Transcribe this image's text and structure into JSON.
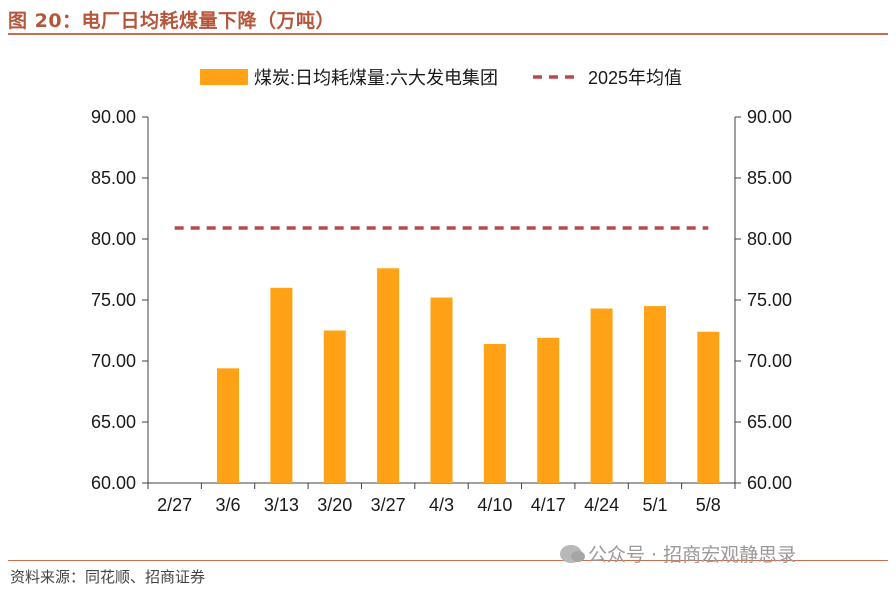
{
  "header": {
    "title": "图 20：电厂日均耗煤量下降（万吨）"
  },
  "footer": {
    "source": "资料来源：同花顺、招商证券",
    "watermark": "公众号 · 招商宏观静思录"
  },
  "colors": {
    "bar": "#FFA215",
    "avg_line": "#B84A48",
    "axis": "#404040",
    "title": "#B5563A"
  },
  "chart_data": {
    "type": "bar",
    "categories": [
      "2/27",
      "3/6",
      "3/13",
      "3/20",
      "3/27",
      "4/3",
      "4/10",
      "4/17",
      "4/24",
      "5/1",
      "5/8"
    ],
    "series": [
      {
        "name": "煤炭:日均耗煤量:六大发电集团",
        "values": [
          null,
          69.4,
          76.0,
          72.5,
          77.6,
          75.2,
          71.4,
          71.9,
          74.3,
          74.5,
          72.4
        ]
      },
      {
        "name": "2025年均值",
        "type": "line",
        "style": "dashed",
        "values": [
          80.9,
          80.9,
          80.9,
          80.9,
          80.9,
          80.9,
          80.9,
          80.9,
          80.9,
          80.9,
          80.9
        ]
      }
    ],
    "ylim": [
      60,
      90
    ],
    "yticks": [
      "60.00",
      "65.00",
      "70.00",
      "75.00",
      "80.00",
      "85.00",
      "90.00"
    ],
    "y2ticks": [
      "60.00",
      "65.00",
      "70.00",
      "75.00",
      "80.00",
      "85.00",
      "90.00"
    ],
    "legend_position": "top-center",
    "grid": false
  }
}
